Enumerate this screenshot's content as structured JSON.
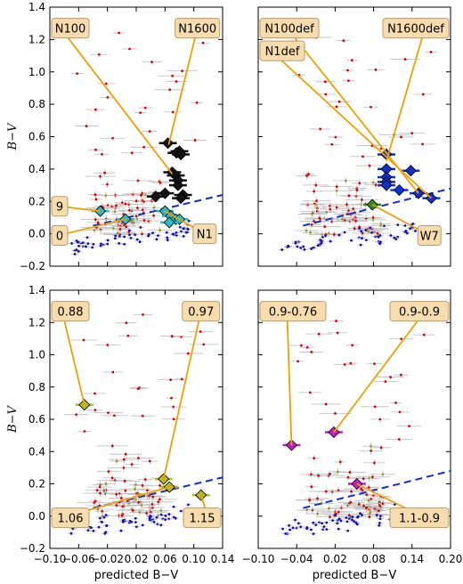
{
  "colors": {
    "annotation_line": "#f0a000",
    "annotation_box_fill": "#f7dcae",
    "annotation_box_stroke": "#b89a70",
    "background_points": "#bbbbbb",
    "red_points": "#e00000",
    "olive_points": "#9a9a20",
    "blue_points": "#1010c0",
    "trend_line": "#1030d0",
    "marker_black": "#111111",
    "marker_cyan": "#30b8c0",
    "marker_blue": "#1030d0",
    "marker_green": "#2a8a2a",
    "marker_olive": "#b8b820",
    "marker_magenta": "#c020c0"
  },
  "chart_data": [
    {
      "type": "scatter",
      "panel": "top-left",
      "ylabel": "B−V",
      "xlabel": "",
      "xlim": [
        -0.1,
        0.14
      ],
      "ylim": [
        -0.2,
        1.4
      ],
      "yticks": [
        "−0.2",
        "0.0",
        "0.2",
        "0.4",
        "0.6",
        "0.8",
        "1.0",
        "1.2",
        "1.4"
      ],
      "xticks": [],
      "trend_line": [
        [
          -0.04,
          0.05
        ],
        [
          0.14,
          0.24
        ]
      ],
      "highlight_color": "marker_black",
      "highlight_points": [
        {
          "x": 0.064,
          "y": 0.56
        },
        {
          "x": 0.08,
          "y": 0.51
        },
        {
          "x": 0.076,
          "y": 0.5
        },
        {
          "x": 0.082,
          "y": 0.49
        },
        {
          "x": 0.07,
          "y": 0.38
        },
        {
          "x": 0.075,
          "y": 0.36
        },
        {
          "x": 0.078,
          "y": 0.33
        },
        {
          "x": 0.078,
          "y": 0.3
        },
        {
          "x": 0.085,
          "y": 0.24
        },
        {
          "x": 0.082,
          "y": 0.22
        },
        {
          "x": 0.06,
          "y": 0.25
        },
        {
          "x": 0.047,
          "y": 0.23
        }
      ],
      "secondary_color": "marker_cyan",
      "secondary_points": [
        {
          "x": -0.03,
          "y": 0.14
        },
        {
          "x": 0.005,
          "y": 0.09
        },
        {
          "x": 0.06,
          "y": 0.14
        },
        {
          "x": 0.068,
          "y": 0.11
        },
        {
          "x": 0.075,
          "y": 0.09
        },
        {
          "x": 0.08,
          "y": 0.09
        },
        {
          "x": 0.066,
          "y": 0.07
        }
      ],
      "annotations": [
        {
          "text": "N100",
          "box": [
            -0.085,
            1.27
          ],
          "target": [
            0.07,
            0.37
          ]
        },
        {
          "text": "N1600",
          "box": [
            0.105,
            1.27
          ],
          "target": [
            0.065,
            0.55
          ]
        },
        {
          "text": "9",
          "box": [
            -0.088,
            0.17
          ],
          "target": [
            -0.03,
            0.14
          ]
        },
        {
          "text": "0",
          "box": [
            -0.088,
            -0.01
          ],
          "target": [
            0.005,
            0.09
          ]
        },
        {
          "text": "N1",
          "box": [
            0.115,
            0.0
          ],
          "target": [
            0.06,
            0.14
          ]
        }
      ]
    },
    {
      "type": "scatter",
      "panel": "top-right",
      "ylabel": "",
      "xlabel": "",
      "xlim": [
        -0.1,
        0.2
      ],
      "ylim": [
        -0.2,
        1.4
      ],
      "yticks": [],
      "xticks": [],
      "trend_line": [
        [
          -0.03,
          0.05
        ],
        [
          0.2,
          0.28
        ]
      ],
      "highlight_color": "marker_blue",
      "highlight_points": [
        {
          "x": 0.1,
          "y": 0.49
        },
        {
          "x": 0.1,
          "y": 0.4
        },
        {
          "x": 0.138,
          "y": 0.39
        },
        {
          "x": 0.1,
          "y": 0.35
        },
        {
          "x": 0.1,
          "y": 0.32
        },
        {
          "x": 0.1,
          "y": 0.3
        },
        {
          "x": 0.12,
          "y": 0.27
        },
        {
          "x": 0.15,
          "y": 0.25
        },
        {
          "x": 0.17,
          "y": 0.22
        }
      ],
      "secondary_color": "marker_green",
      "secondary_points": [
        {
          "x": 0.078,
          "y": 0.18
        }
      ],
      "annotations": [
        {
          "text": "N100def",
          "box": [
            -0.055,
            1.27
          ],
          "target": [
            0.15,
            0.25
          ]
        },
        {
          "text": "N1600def",
          "box": [
            0.16,
            1.27
          ],
          "target": [
            0.1,
            0.45
          ]
        },
        {
          "text": "N1def",
          "box": [
            -0.08,
            1.13
          ],
          "target": [
            0.17,
            0.22
          ]
        },
        {
          "text": "W7",
          "box": [
            0.167,
            -0.01
          ],
          "target": [
            0.078,
            0.18
          ]
        }
      ]
    },
    {
      "type": "scatter",
      "panel": "bottom-left",
      "ylabel": "B−V",
      "xlabel": "predicted B−V",
      "xlim": [
        -0.1,
        0.14
      ],
      "ylim": [
        -0.2,
        1.4
      ],
      "yticks": [
        "−0.2",
        "0.0",
        "0.2",
        "0.4",
        "0.6",
        "0.8",
        "1.0",
        "1.2",
        "1.4"
      ],
      "xticks": [
        "−0.10",
        "−0.06",
        "−0.02",
        "0.02",
        "0.06",
        "0.10",
        "0.14"
      ],
      "trend_line": [
        [
          -0.04,
          0.05
        ],
        [
          0.14,
          0.24
        ]
      ],
      "highlight_color": "marker_olive",
      "highlight_points": [
        {
          "x": -0.052,
          "y": 0.69
        },
        {
          "x": 0.058,
          "y": 0.23
        },
        {
          "x": 0.066,
          "y": 0.18
        },
        {
          "x": 0.11,
          "y": 0.13
        }
      ],
      "annotations": [
        {
          "text": "0.88",
          "box": [
            -0.083,
            1.27
          ],
          "target": [
            -0.052,
            0.69
          ]
        },
        {
          "text": "0.97",
          "box": [
            0.11,
            1.27
          ],
          "target": [
            0.058,
            0.23
          ]
        },
        {
          "text": "1.06",
          "box": [
            -0.083,
            -0.01
          ],
          "target": [
            0.066,
            0.18
          ]
        },
        {
          "text": "1.15",
          "box": [
            0.12,
            -0.01
          ],
          "target": [
            0.11,
            0.13
          ]
        }
      ]
    },
    {
      "type": "scatter",
      "panel": "bottom-right",
      "ylabel": "",
      "xlabel": "predicted B−V",
      "xlim": [
        -0.1,
        0.2
      ],
      "ylim": [
        -0.2,
        1.4
      ],
      "yticks": [],
      "xticks": [
        "−0.10",
        "−0.04",
        "0.02",
        "0.08",
        "0.14",
        "0.20"
      ],
      "trend_line": [
        [
          -0.03,
          0.05
        ],
        [
          0.2,
          0.28
        ]
      ],
      "highlight_color": "marker_magenta",
      "highlight_points": [
        {
          "x": -0.048,
          "y": 0.44
        },
        {
          "x": 0.018,
          "y": 0.52
        },
        {
          "x": 0.054,
          "y": 0.2
        }
      ],
      "annotations": [
        {
          "text": "0.9-0.76",
          "box": [
            -0.055,
            1.27
          ],
          "target": [
            -0.048,
            0.44
          ]
        },
        {
          "text": "0.9-0.9",
          "box": [
            0.16,
            1.27
          ],
          "target": [
            0.018,
            0.52
          ]
        },
        {
          "text": "1.1-0.9",
          "box": [
            0.16,
            -0.01
          ],
          "target": [
            0.054,
            0.2
          ]
        }
      ]
    }
  ]
}
